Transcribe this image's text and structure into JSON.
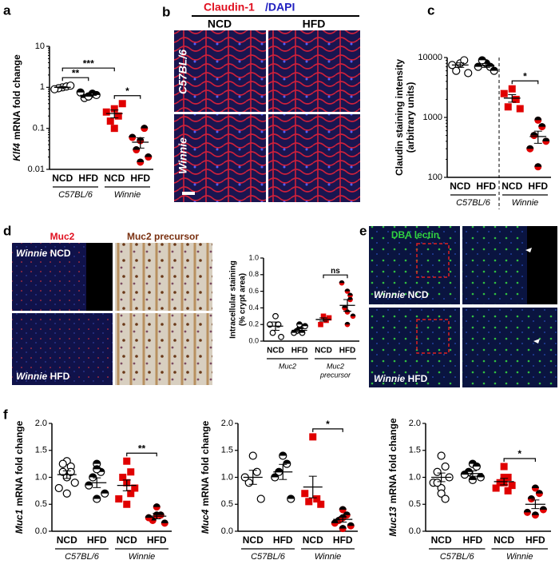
{
  "panels": [
    "a",
    "b",
    "c",
    "d",
    "e",
    "f"
  ],
  "claudin": {
    "stain": "Claudin-1",
    "counterstain": "/DAPI",
    "columns": [
      "NCD",
      "HFD"
    ],
    "rows": [
      "C57BL/6",
      "Winnie"
    ]
  },
  "muc2": {
    "stains": [
      "Muc2",
      "Muc2 precursor"
    ],
    "rows": [
      {
        "strain": "Winnie",
        "diet": "NCD"
      },
      {
        "strain": "Winnie",
        "diet": "HFD"
      }
    ]
  },
  "dba": {
    "stain": "DBA lectin",
    "rows": [
      {
        "strain": "Winnie",
        "diet": "NCD"
      },
      {
        "strain": "Winnie",
        "diet": "HFD"
      }
    ]
  },
  "chart_data": [
    {
      "type": "dotplot",
      "ylabel_gene": "Klf4",
      "ylabel": "mRNA fold change",
      "log": true,
      "ylim": [
        0.01,
        10
      ],
      "yticks": [
        0.01,
        0.1,
        1,
        10
      ],
      "categories": [
        "NCD",
        "HFD",
        "NCD",
        "HFD"
      ],
      "group_labels": [
        [
          "C57BL/6"
        ],
        [
          "Winnie"
        ]
      ],
      "markers": [
        "open",
        "half",
        "square",
        "half-red"
      ],
      "colors": [
        "#000000",
        "#000000",
        "#e00000",
        "#e00000"
      ],
      "points": [
        [
          1.0,
          1.05,
          0.95,
          1.1,
          0.9
        ],
        [
          0.6,
          0.7,
          0.55,
          0.65,
          0.75,
          0.6
        ],
        [
          0.3,
          0.2,
          0.15,
          0.4,
          0.25,
          0.1
        ],
        [
          0.05,
          0.1,
          0.03,
          0.02,
          0.06,
          0.015
        ]
      ],
      "means": [
        1.0,
        0.64,
        0.23,
        0.046
      ],
      "sems": [
        0.04,
        0.03,
        0.05,
        0.013
      ],
      "annotations": [
        {
          "label": "**",
          "categories": [
            0,
            1
          ]
        },
        {
          "label": "***",
          "categories": [
            0,
            2
          ]
        },
        {
          "label": "*",
          "categories": [
            2,
            3
          ]
        }
      ]
    },
    {
      "type": "dotplot",
      "ylabel_lines": [
        "Claudin staining intensity",
        "(arbitrary units)"
      ],
      "log": true,
      "divider": true,
      "ylim": [
        100,
        10000
      ],
      "yticks": [
        100,
        1000,
        10000
      ],
      "categories": [
        "NCD",
        "HFD",
        "NCD",
        "HFD"
      ],
      "group_labels": [
        [
          "C57BL/6"
        ],
        [
          "Winnie"
        ]
      ],
      "markers": [
        "open",
        "half",
        "square",
        "half-red"
      ],
      "colors": [
        "#000000",
        "#000000",
        "#e00000",
        "#e00000"
      ],
      "points": [
        [
          8000,
          9000,
          6000,
          5500,
          7500
        ],
        [
          8000,
          7000,
          9000,
          6000,
          7000
        ],
        [
          3000,
          2000,
          1500,
          1400,
          2500
        ],
        [
          900,
          700,
          500,
          400,
          300,
          150
        ]
      ],
      "means": [
        7500,
        7400,
        2100,
        480
      ],
      "sems": [
        650,
        550,
        300,
        110
      ],
      "annotations": [
        {
          "label": "*",
          "categories": [
            2,
            3
          ]
        }
      ]
    },
    {
      "type": "dotplot",
      "ylabel_lines": [
        "Intracellular staining",
        "(% crypt area)"
      ],
      "small": true,
      "ylim": [
        0,
        1
      ],
      "yticks": [
        {
          "value": 0,
          "label": "0.0"
        },
        {
          "value": 0.2,
          "label": "0.2"
        },
        {
          "value": 0.4,
          "label": "0.4"
        },
        {
          "value": 0.6,
          "label": "0.6"
        },
        {
          "value": 0.8,
          "label": "0.8"
        },
        {
          "value": 1,
          "label": "1.0"
        }
      ],
      "categories": [
        "NCD",
        "HFD",
        "NCD",
        "HFD"
      ],
      "group_labels": [
        [
          "Muc2"
        ],
        [
          "Muc2",
          "precursor"
        ]
      ],
      "markers": [
        "open",
        "half",
        "square",
        "half-red"
      ],
      "colors": [
        "#000000",
        "#000000",
        "#e00000",
        "#e00000"
      ],
      "points": [
        [
          0.3,
          0.2,
          0.1,
          0.05,
          0.2
        ],
        [
          0.15,
          0.1,
          0.12,
          0.18,
          0.1,
          0.2
        ],
        [
          0.3,
          0.25,
          0.2,
          0.28
        ],
        [
          0.6,
          0.55,
          0.4,
          0.3,
          0.7,
          0.2,
          0.35,
          0.5
        ]
      ],
      "means": [
        0.18,
        0.13,
        0.26,
        0.43
      ],
      "sems": [
        0.05,
        0.02,
        0.02,
        0.07
      ],
      "annotations": [
        {
          "label": "ns",
          "categories": [
            2,
            3
          ]
        }
      ]
    },
    {
      "type": "dotplot",
      "ylabel_gene": "Muc1",
      "ylabel": "mRNA fold change",
      "ylim": [
        0,
        2
      ],
      "yticks": [
        {
          "value": 0,
          "label": "0.0"
        },
        {
          "value": 0.5,
          "label": "0.5"
        },
        {
          "value": 1,
          "label": "1.0"
        },
        {
          "value": 1.5,
          "label": "1.5"
        },
        {
          "value": 2,
          "label": "2.0"
        }
      ],
      "categories": [
        "NCD",
        "HFD",
        "NCD",
        "HFD"
      ],
      "group_labels": [
        [
          "C57BL/6"
        ],
        [
          "Winnie"
        ]
      ],
      "markers": [
        "open",
        "half",
        "square",
        "half-red"
      ],
      "colors": [
        "#000000",
        "#000000",
        "#e00000",
        "#e00000"
      ],
      "points": [
        [
          1.3,
          1.2,
          1.1,
          0.9,
          0.8,
          1.0,
          0.7,
          1.1,
          1.25
        ],
        [
          1.25,
          1.1,
          1.0,
          0.7,
          0.85,
          0.6,
          1.15
        ],
        [
          1.3,
          1.1,
          1.0,
          0.8,
          0.6,
          0.5,
          0.9,
          0.7
        ],
        [
          0.45,
          0.3,
          0.2,
          0.15,
          0.25,
          0.3
        ]
      ],
      "means": [
        1.05,
        0.9,
        0.85,
        0.28
      ],
      "sems": [
        0.07,
        0.09,
        0.1,
        0.05
      ],
      "annotations": [
        {
          "label": "**",
          "categories": [
            2,
            3
          ]
        }
      ]
    },
    {
      "type": "dotplot",
      "ylabel_gene": "Muc4",
      "ylabel": "mRNA fold change",
      "ylim": [
        0,
        2
      ],
      "yticks": [
        {
          "value": 0,
          "label": "0.0"
        },
        {
          "value": 0.5,
          "label": "0.5"
        },
        {
          "value": 1,
          "label": "1.0"
        },
        {
          "value": 1.5,
          "label": "1.5"
        },
        {
          "value": 2,
          "label": "2.0"
        }
      ],
      "categories": [
        "NCD",
        "HFD",
        "NCD",
        "HFD"
      ],
      "group_labels": [
        [
          "C57BL/6"
        ],
        [
          "Winnie"
        ]
      ],
      "markers": [
        "open",
        "half",
        "square",
        "half-red"
      ],
      "colors": [
        "#000000",
        "#000000",
        "#e00000",
        "#e00000"
      ],
      "points": [
        [
          1.4,
          1.1,
          0.9,
          0.6,
          1.0
        ],
        [
          1.4,
          1.25,
          1.1,
          0.6,
          1.0
        ],
        [
          1.75,
          0.6,
          0.55,
          0.5,
          0.7
        ],
        [
          0.4,
          0.3,
          0.2,
          0.1,
          0.15,
          0.05,
          0.25
        ]
      ],
      "means": [
        1.0,
        1.1,
        0.82,
        0.22
      ],
      "sems": [
        0.13,
        0.14,
        0.2,
        0.05
      ],
      "annotations": [
        {
          "label": "*",
          "categories": [
            2,
            3
          ]
        }
      ]
    },
    {
      "type": "dotplot",
      "ylabel_gene": "Muc13",
      "ylabel": "mRNA fold change",
      "ylim": [
        0,
        2
      ],
      "yticks": [
        {
          "value": 0,
          "label": "0.0"
        },
        {
          "value": 0.5,
          "label": "0.5"
        },
        {
          "value": 1,
          "label": "1.0"
        },
        {
          "value": 1.5,
          "label": "1.5"
        },
        {
          "value": 2,
          "label": "2.0"
        }
      ],
      "categories": [
        "NCD",
        "HFD",
        "NCD",
        "HFD"
      ],
      "group_labels": [
        [
          "C57BL/6"
        ],
        [
          "Winnie"
        ]
      ],
      "markers": [
        "open",
        "half",
        "square",
        "half-red"
      ],
      "colors": [
        "#000000",
        "#000000",
        "#e00000",
        "#e00000"
      ],
      "points": [
        [
          1.4,
          1.2,
          1.1,
          1.0,
          0.9,
          0.8,
          0.7,
          0.6,
          0.9
        ],
        [
          1.25,
          1.2,
          1.1,
          1.0,
          1.05,
          0.95
        ],
        [
          1.2,
          1.0,
          0.9,
          0.85,
          0.8,
          0.9,
          1.0,
          0.75
        ],
        [
          0.8,
          0.7,
          0.6,
          0.4,
          0.35,
          0.3
        ]
      ],
      "means": [
        1.0,
        1.07,
        0.92,
        0.5
      ],
      "sems": [
        0.08,
        0.05,
        0.06,
        0.08
      ],
      "annotations": [
        {
          "label": "*",
          "categories": [
            2,
            3
          ]
        }
      ]
    }
  ]
}
